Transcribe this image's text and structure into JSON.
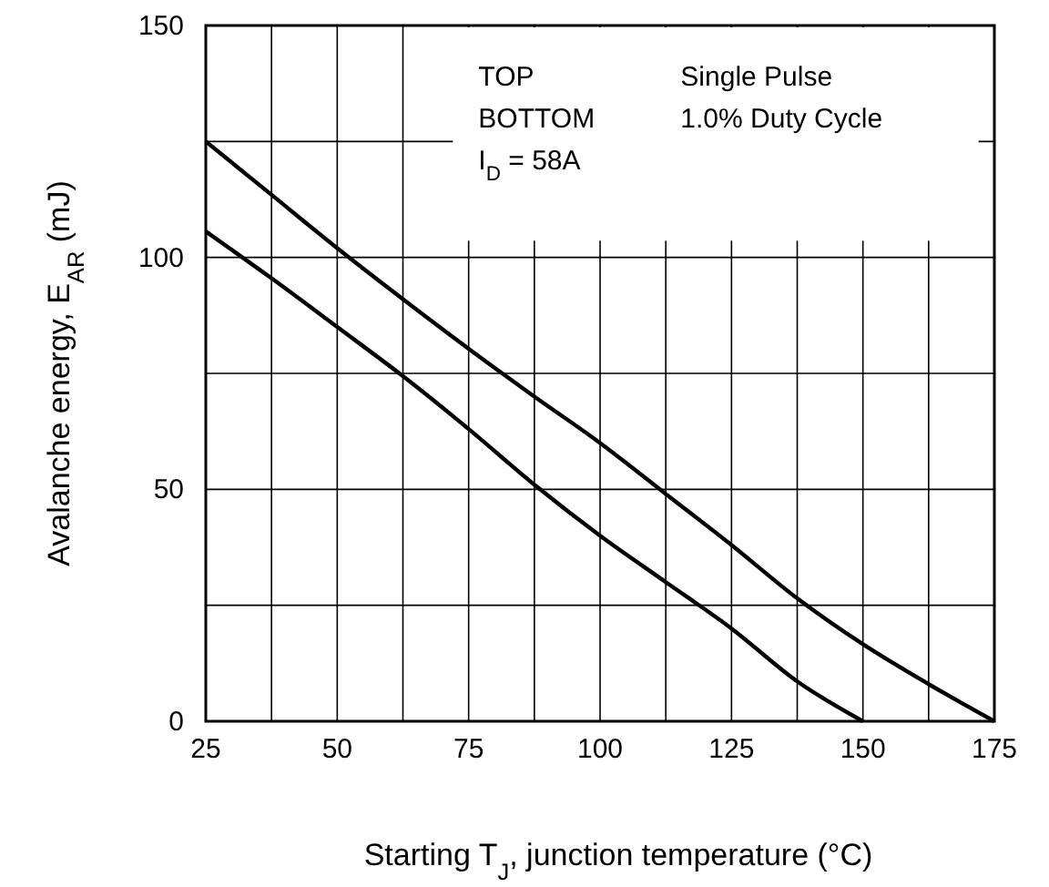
{
  "chart_data": {
    "type": "line",
    "xlabel": "Starting T$_{J}$, junction temperature (°C)",
    "ylabel": "Avalanche energy, E$_{AR}$ (mJ)",
    "x": [
      25,
      37.5,
      50,
      62.5,
      75,
      87.5,
      100,
      112.5,
      125,
      137.5,
      150,
      162.5,
      175
    ],
    "series": [
      {
        "color": "#000000",
        "values": [
          125,
          113.5,
          102,
          91,
          80.3,
          70,
          60,
          49,
          38,
          26.5,
          16.6,
          8,
          0
        ]
      },
      {
        "color": "#000000",
        "values": [
          105.6,
          95.5,
          85,
          74.4,
          63,
          51,
          40,
          30,
          20,
          8.6,
          0,
          null,
          null
        ]
      }
    ],
    "xlim": [
      25,
      175
    ],
    "ylim": [
      0,
      150
    ],
    "xticks": [
      25,
      {
        "value": 37.5,
        "label": null
      },
      50,
      {
        "value": 62.5,
        "label": null
      },
      75,
      {
        "value": 87.5,
        "label": null
      },
      100,
      {
        "value": 112.5,
        "label": null
      },
      125,
      {
        "value": 137.5,
        "label": null
      },
      150,
      {
        "value": 162.5,
        "label": null
      },
      175
    ],
    "yticks": [
      0,
      {
        "value": 25,
        "label": null
      },
      50,
      {
        "value": 75,
        "label": null
      },
      100,
      {
        "value": 125,
        "label": null
      },
      150
    ],
    "grid": true,
    "line_style": "solid",
    "annotations": [
      "TOP",
      "Single Pulse",
      "BOTTOM",
      "1.0% Duty Cycle",
      "I$_{D}$ = 58A"
    ]
  }
}
